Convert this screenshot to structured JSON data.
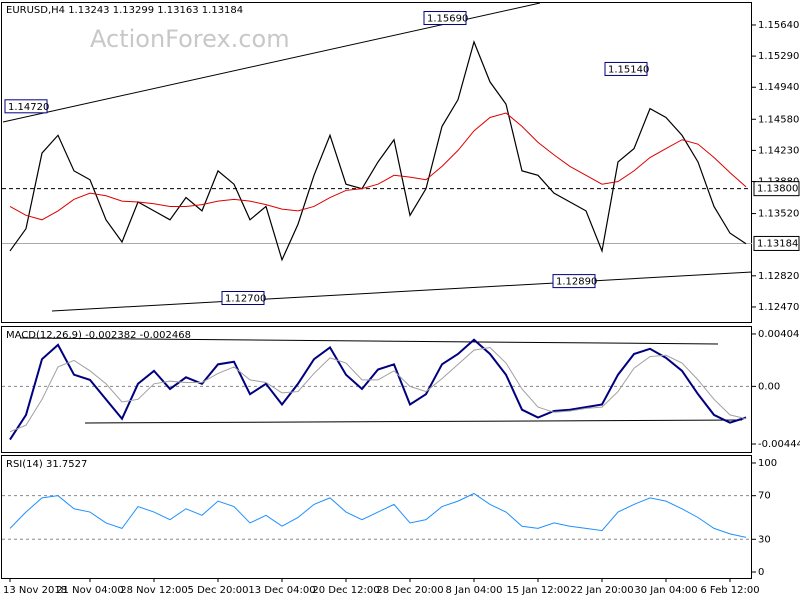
{
  "chart_data": [
    {
      "type": "line",
      "title": "EURUSD,H4  1.13243 1.13299 1.13163 1.13184",
      "watermark": "ActionForex.com",
      "series": [
        {
          "color": "#000000",
          "width": 1.2,
          "values": [
            1.131,
            1.1335,
            1.142,
            1.144,
            1.14,
            1.139,
            1.1345,
            1.132,
            1.1365,
            1.1355,
            1.1345,
            1.137,
            1.1355,
            1.14,
            1.1385,
            1.1345,
            1.136,
            1.13,
            1.134,
            1.1395,
            1.144,
            1.1385,
            1.138,
            1.141,
            1.1435,
            1.135,
            1.138,
            1.145,
            1.148,
            1.1545,
            1.15,
            1.1475,
            1.14,
            1.1395,
            1.1375,
            1.1365,
            1.1355,
            1.131,
            1.141,
            1.1425,
            1.147,
            1.146,
            1.144,
            1.141,
            1.136,
            1.133,
            1.1318
          ]
        },
        {
          "color": "#dd0000",
          "width": 1,
          "values": [
            1.136,
            1.135,
            1.1345,
            1.1355,
            1.1368,
            1.1375,
            1.1372,
            1.1366,
            1.1365,
            1.1363,
            1.136,
            1.136,
            1.1362,
            1.1366,
            1.1368,
            1.1366,
            1.1362,
            1.1357,
            1.1355,
            1.136,
            1.137,
            1.1378,
            1.138,
            1.1385,
            1.1395,
            1.1393,
            1.139,
            1.1405,
            1.1423,
            1.1445,
            1.146,
            1.1465,
            1.145,
            1.1432,
            1.1418,
            1.1405,
            1.1395,
            1.1385,
            1.1388,
            1.14,
            1.1415,
            1.1425,
            1.1435,
            1.143,
            1.1415,
            1.1398,
            1.1382
          ]
        }
      ],
      "ylim": [
        1.12301,
        1.15887
      ],
      "yticks": [
        {
          "value": 1.1564,
          "label": "1.15640"
        },
        {
          "value": 1.1529,
          "label": "1.15290"
        },
        {
          "value": 1.1494,
          "label": "1.14940"
        },
        {
          "value": 1.1458,
          "label": "1.14580"
        },
        {
          "value": 1.1423,
          "label": "1.14230"
        },
        {
          "value": 1.1388,
          "label": "1.13880"
        },
        {
          "value": 1.1352,
          "label": "1.13520"
        },
        {
          "value": 1.1282,
          "label": "1.12820"
        },
        {
          "value": 1.1247,
          "label": "1.12470"
        }
      ],
      "hlines": [
        {
          "value": 1.138,
          "label": "1.13800",
          "style": "dashed"
        },
        {
          "value": 1.13184,
          "label": "1.13184",
          "style": "solid"
        }
      ],
      "annotations": [
        {
          "value": 1.1472,
          "label": "1.14720"
        },
        {
          "value": 1.1569,
          "label": "1.15690"
        },
        {
          "value": 1.1514,
          "label": "1.15140"
        },
        {
          "value": 1.127,
          "label": "1.12700"
        },
        {
          "value": 1.1289,
          "label": "1.12890"
        }
      ]
    },
    {
      "type": "line",
      "title": "MACD(12,26,9) -0.002382 -0.002468",
      "series": [
        {
          "color": "#000080",
          "width": 2,
          "values": [
            -0.0041,
            -0.0022,
            0.0021,
            0.0032,
            0.0009,
            0.0005,
            -0.001,
            -0.0025,
            0.0002,
            0.0012,
            -0.0002,
            0.0007,
            0.0002,
            0.0017,
            0.0019,
            -0.0006,
            0.0002,
            -0.0014,
            0.0002,
            0.0021,
            0.003,
            0.0009,
            -0.0002,
            0.0013,
            0.0017,
            -0.0014,
            -0.0006,
            0.0017,
            0.0025,
            0.0036,
            0.0025,
            0.0009,
            -0.0018,
            -0.0024,
            -0.0019,
            -0.0018,
            -0.0016,
            -0.0014,
            0.0009,
            0.0025,
            0.0029,
            0.0022,
            0.0012,
            -0.0006,
            -0.0022,
            -0.0028,
            -0.0024
          ]
        },
        {
          "color": "#a0a0a0",
          "width": 1,
          "values": [
            -0.0035,
            -0.003,
            -0.001,
            0.0015,
            0.002,
            0.0012,
            0.0002,
            -0.0012,
            -0.001,
            0.0002,
            0.0004,
            0.0003,
            0.0003,
            0.001,
            0.0015,
            0.0005,
            0.0003,
            -0.0005,
            -0.0004,
            0.001,
            0.0022,
            0.0018,
            0.0005,
            0.0005,
            0.0012,
            0.0,
            -0.0004,
            0.0006,
            0.0017,
            0.0028,
            0.003,
            0.0018,
            -0.0002,
            -0.0016,
            -0.002,
            -0.0019,
            -0.0017,
            -0.0016,
            -0.0004,
            0.0014,
            0.0023,
            0.0024,
            0.0018,
            0.0005,
            -0.001,
            -0.0022,
            -0.0025
          ]
        }
      ],
      "ylim": [
        -0.005062,
        0.00458
      ],
      "yticks": [
        0.004043,
        {
          "value": 0,
          "label": "0.00"
        },
        -0.004445
      ],
      "levels": [
        0
      ]
    },
    {
      "type": "line",
      "title": "RSI(14) 31.7527",
      "categories": [
        "13 Nov 2018",
        null,
        null,
        null,
        null,
        "21 Nov 04:00",
        null,
        null,
        null,
        "28 Nov 12:00",
        null,
        null,
        null,
        "5 Dec 20:00",
        null,
        null,
        null,
        "13 Dec 04:00",
        null,
        null,
        null,
        "20 Dec 12:00",
        null,
        null,
        null,
        "28 Dec 20:00",
        null,
        null,
        null,
        "8 Jan 04:00",
        null,
        null,
        null,
        "15 Jan 12:00",
        null,
        null,
        null,
        "22 Jan 20:00",
        null,
        null,
        null,
        "30 Jan 04:00",
        null,
        null,
        null,
        "6 Feb 12:00",
        null
      ],
      "series": [
        {
          "color": "#1e90ff",
          "width": 1,
          "values": [
            40,
            55,
            68,
            70,
            58,
            55,
            45,
            40,
            60,
            55,
            48,
            58,
            52,
            65,
            60,
            45,
            52,
            42,
            50,
            62,
            68,
            55,
            48,
            55,
            62,
            45,
            48,
            60,
            65,
            72,
            62,
            55,
            42,
            40,
            45,
            42,
            40,
            38,
            55,
            62,
            68,
            65,
            58,
            50,
            40,
            35,
            31.75
          ]
        }
      ],
      "ylim": [
        -5.5,
        106.4
      ],
      "yticks": [
        100,
        70,
        30,
        0
      ],
      "levels": [
        70,
        30
      ]
    }
  ]
}
